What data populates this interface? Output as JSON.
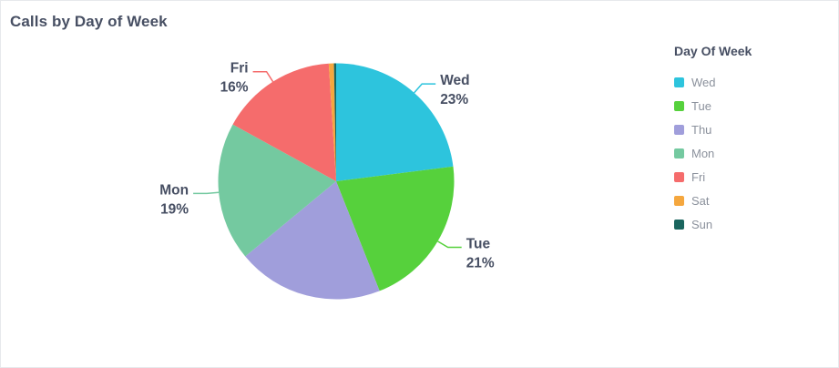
{
  "chart_data": {
    "type": "pie",
    "title": "Calls by Day of Week",
    "legend": {
      "title": "Day Of Week",
      "position": "right"
    },
    "series": [
      {
        "name": "Wed",
        "percent": 23,
        "display_percent": "23%",
        "labeled": true,
        "color": "#2dc4dd"
      },
      {
        "name": "Tue",
        "percent": 21,
        "display_percent": "21%",
        "labeled": true,
        "color": "#56d13c"
      },
      {
        "name": "Thu",
        "percent": 20,
        "display_percent": "",
        "labeled": false,
        "color": "#a09edb"
      },
      {
        "name": "Mon",
        "percent": 19,
        "display_percent": "19%",
        "labeled": true,
        "color": "#74c9a0"
      },
      {
        "name": "Fri",
        "percent": 16,
        "display_percent": "16%",
        "labeled": true,
        "color": "#f56c6c"
      },
      {
        "name": "Sat",
        "percent": 0.7,
        "display_percent": "",
        "labeled": false,
        "color": "#f5a73e"
      },
      {
        "name": "Sun",
        "percent": 0.3,
        "display_percent": "",
        "labeled": false,
        "color": "#1a655e"
      }
    ]
  }
}
